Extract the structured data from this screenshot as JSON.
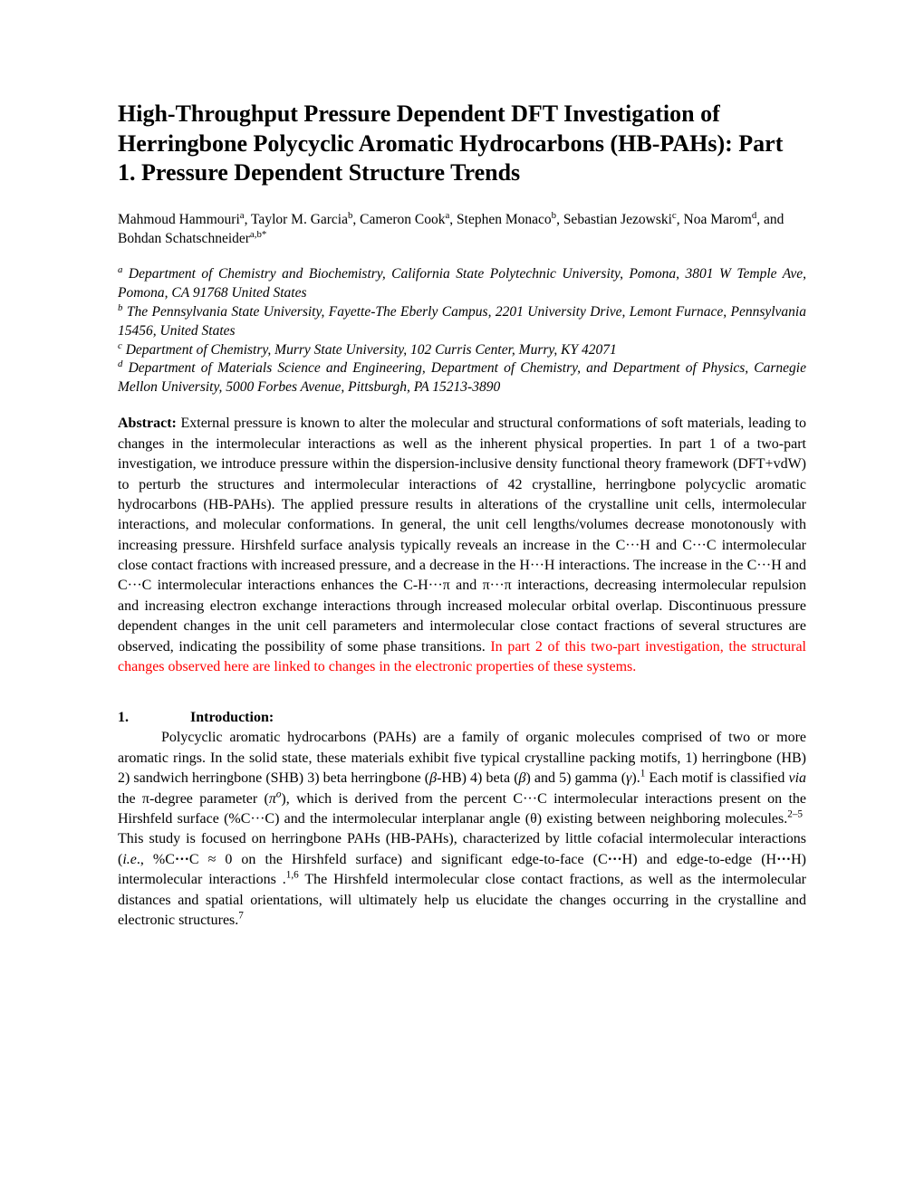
{
  "title": "High-Throughput Pressure Dependent DFT Investigation of Herringbone Polycyclic Aromatic Hydrocarbons (HB-PAHs): Part 1. Pressure Dependent Structure Trends",
  "authors_html": "Mahmoud Hammouri<sup>a</sup>, Taylor M. Garcia<sup>b</sup>, Cameron Cook<sup>a</sup>, Stephen Monaco<sup>b</sup>, Sebastian Jezowski<sup>c</sup>, Noa Marom<sup>d</sup>, and Bohdan Schatschneider<sup>a,b*</sup>",
  "affiliations": [
    "<sup>a</sup> Department of Chemistry and Biochemistry, California State Polytechnic University, Pomona, 3801 W Temple Ave, Pomona, CA 91768 United States",
    "<sup>b</sup> The Pennsylvania State University, Fayette-The Eberly Campus, 2201 University Drive, Lemont Furnace, Pennsylvania 15456, United States",
    "<sup>c</sup> Department of Chemistry, Murry State University, 102 Curris Center, Murry, KY 42071",
    "<sup>d</sup> Department of Materials Science and Engineering, Department of Chemistry, and Department of Physics, Carnegie Mellon University, 5000 Forbes Avenue, Pittsburgh, PA 15213-3890"
  ],
  "abstract_label": "Abstract:",
  "abstract_main": " External pressure is known to alter the molecular and structural conformations of soft materials, leading to changes in the intermolecular interactions as well as the inherent physical properties. In part 1 of a two-part investigation, we introduce pressure within the dispersion-inclusive density functional theory framework (DFT+vdW) to perturb the structures and intermolecular interactions of 42 crystalline, herringbone polycyclic aromatic hydrocarbons (HB-PAHs). The applied pressure results in alterations of the crystalline unit cells, intermolecular interactions, and molecular conformations. In general, the unit cell lengths/volumes decrease monotonously with increasing pressure. Hirshfeld surface analysis typically reveals an increase in the C···H and C···C intermolecular close contact fractions with increased pressure, and a decrease in the H···H interactions. The increase in the C···H and C···C intermolecular interactions enhances the C-H···π and π···π interactions, decreasing intermolecular repulsion and increasing electron exchange interactions through increased molecular orbital overlap. Discontinuous pressure dependent changes in the unit cell parameters and intermolecular close contact fractions of several structures are observed, indicating the possibility of some phase transitions. ",
  "abstract_red": "In part 2 of this two-part investigation, the structural changes observed here are linked to changes in the electronic properties of these systems.",
  "section_num": "1.",
  "section_title": "Introduction:",
  "intro_html": "Polycyclic aromatic hydrocarbons (PAHs) are a family of organic molecules comprised of two or more aromatic rings. In the solid state, these materials exhibit five typical crystalline packing motifs, 1) herringbone (HB) 2) sandwich herringbone (SHB) 3) beta herringbone (<i>β</i>-HB) 4) beta (<i>β</i>) and 5) gamma (<i>γ</i>).<sup>1</sup> Each motif is classified <i>via</i> the π-degree parameter (<i>π<sup>o</sup></i>), which is derived from the percent C···C intermolecular interactions present on the Hirshfeld surface (%C···C) and the intermolecular interplanar angle (θ) existing between neighboring molecules.<sup>2–5</sup>&nbsp; This study is focused on herringbone PAHs (HB-PAHs), characterized by little cofacial intermolecular interactions (<i>i.e</i>., %C<b>···</b>C ≈ 0 on the Hirshfeld surface) and significant edge-to-face (C<b>···</b>H) and edge-to-edge (H<b>···</b>H) intermolecular interactions .<sup>1,6</sup> The Hirshfeld intermolecular close contact fractions, as well as the intermolecular distances and spatial orientations, will ultimately help us elucidate the changes occurring in the crystalline and electronic structures.<sup>7</sup>",
  "colors": {
    "text": "#000000",
    "red": "#ff0000",
    "background": "#ffffff"
  },
  "typography": {
    "title_fontsize": 26,
    "body_fontsize": 16,
    "author_fontsize": 15.5,
    "font_family": "Times New Roman"
  }
}
